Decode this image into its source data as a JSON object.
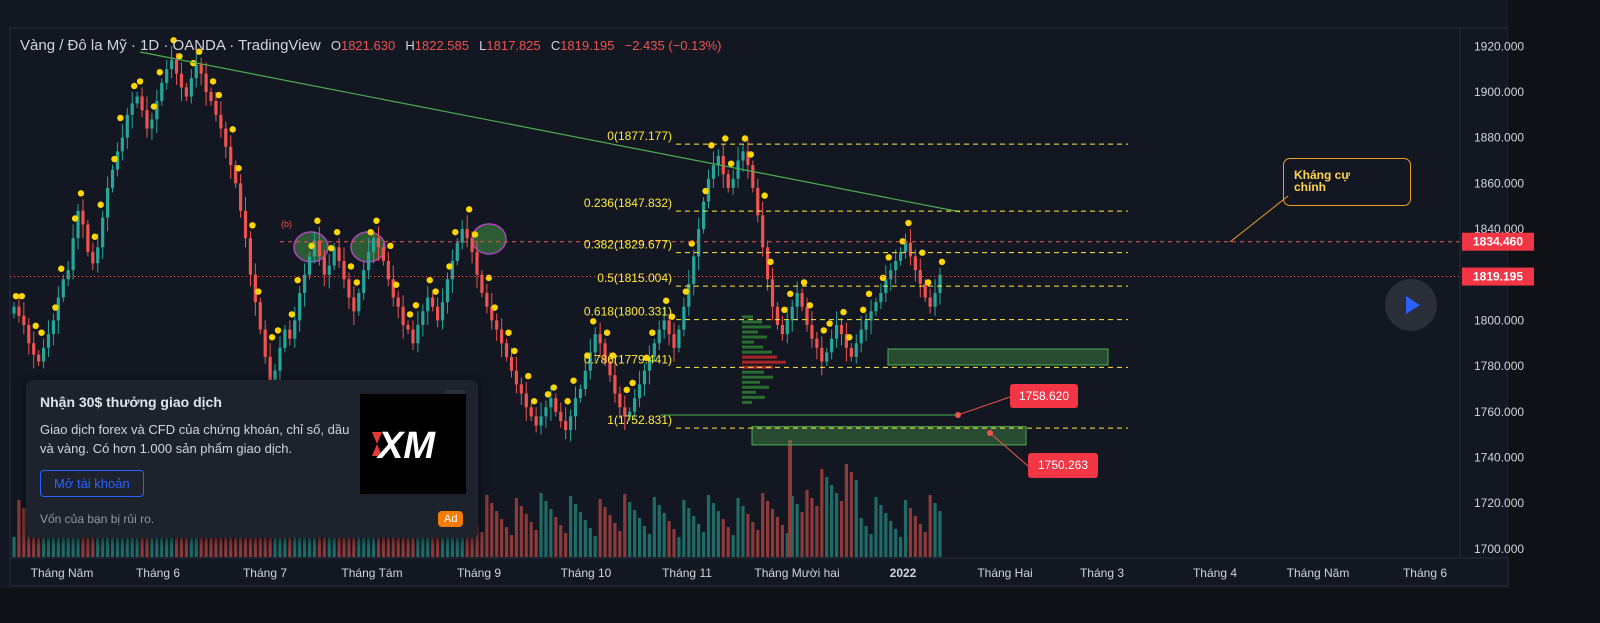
{
  "header": {
    "symbol": "Vàng / Đô la Mỹ · 1D · OANDA · TradingView",
    "o_label": "O",
    "o_value": "1821.630",
    "h_label": "H",
    "h_value": "1822.585",
    "l_label": "L",
    "l_value": "1817.825",
    "c_label": "C",
    "c_value": "1819.195",
    "change": "−2.435 (−0.13%)"
  },
  "ad": {
    "title": "Nhận 30$ thưởng giao dịch",
    "body": "Giao dịch forex và CFD của chứng khoán, chỉ số, dầu và vàng. Có hơn 1.000 sản phẩm giao dịch.",
    "button": "Mở tài khoản",
    "risk": "Vốn của bạn bị rủi ro.",
    "badge": "Ad",
    "close": "✕",
    "logo_text": "XM"
  },
  "annotations": {
    "resistance_label": "Kháng cự chính",
    "wave_label": "(b)",
    "price_tag_1": "1758.620",
    "price_tag_2": "1750.263"
  },
  "colors": {
    "background": "#131722",
    "up": "#26a69a",
    "down": "#ef5350",
    "fib": "#ffeb3b",
    "price_tag": "#f23645",
    "trendline": "#4caf50",
    "accent_blue": "#2962ff"
  },
  "icons": {
    "play": "play-icon",
    "close": "close-icon"
  },
  "chart_data": {
    "type": "candlestick",
    "symbol": "XAUUSD",
    "timeframe": "1D",
    "y_axis": {
      "ticks": [
        1700,
        1720,
        1740,
        1760,
        1780,
        1800,
        1820,
        1840,
        1860,
        1880,
        1900,
        1920
      ],
      "tick_labels": [
        "1700.000",
        "1720.000",
        "1740.000",
        "1760.000",
        "1780.000",
        "1800.000",
        "1820.000",
        "1840.000",
        "1860.000",
        "1880.000",
        "1900.000",
        "1920.000"
      ],
      "range": [
        1696,
        1928
      ]
    },
    "x_axis": {
      "labels": [
        "Tháng Năm",
        "Tháng 6",
        "Tháng 7",
        "Tháng Tám",
        "Tháng 9",
        "Tháng 10",
        "Tháng 11",
        "Tháng Mười hai",
        "2022",
        "Tháng Hai",
        "Tháng 3",
        "Tháng 4",
        "Tháng Năm",
        "Tháng 6"
      ],
      "bold": [
        "2022"
      ]
    },
    "fibonacci": [
      {
        "level": "0",
        "price": 1877.177
      },
      {
        "level": "0.236",
        "price": 1847.832
      },
      {
        "level": "0.382",
        "price": 1829.677
      },
      {
        "level": "0.5",
        "price": 1815.004
      },
      {
        "level": "0.618",
        "price": 1800.331
      },
      {
        "level": "0.786",
        "price": 1779.441
      },
      {
        "level": "1",
        "price": 1752.831
      }
    ],
    "fib_labels": [
      "0(1877.177)",
      "0.236(1847.832)",
      "0.382(1829.677)",
      "0.5(1815.004)",
      "0.618(1800.331)",
      "0.786(1779.441)",
      "1(1752.831)"
    ],
    "price_marks": [
      {
        "label": "1834.460",
        "price": 1834.46
      },
      {
        "label": "1819.195",
        "price": 1819.195
      }
    ],
    "support_zones": [
      [
        1780.5,
        1787.5
      ],
      [
        1745.5,
        1753.5
      ]
    ],
    "trendline": [
      [
        1917.5,
        1847.5
      ]
    ],
    "closes": [
      1806,
      1802,
      1798,
      1790,
      1785,
      1782,
      1788,
      1794,
      1800,
      1810,
      1818,
      1822,
      1836,
      1848,
      1842,
      1830,
      1825,
      1832,
      1845,
      1858,
      1866,
      1874,
      1880,
      1890,
      1895,
      1898,
      1892,
      1884,
      1888,
      1896,
      1904,
      1910,
      1914,
      1908,
      1902,
      1898,
      1906,
      1912,
      1908,
      1900,
      1896,
      1890,
      1884,
      1876,
      1868,
      1860,
      1848,
      1836,
      1820,
      1808,
      1796,
      1784,
      1770,
      1778,
      1788,
      1796,
      1792,
      1800,
      1812,
      1820,
      1828,
      1835,
      1828,
      1820,
      1824,
      1832,
      1826,
      1818,
      1810,
      1804,
      1812,
      1822,
      1830,
      1836,
      1832,
      1826,
      1818,
      1810,
      1806,
      1798,
      1796,
      1790,
      1798,
      1804,
      1810,
      1806,
      1800,
      1808,
      1818,
      1826,
      1834,
      1840,
      1836,
      1830,
      1820,
      1812,
      1806,
      1800,
      1796,
      1790,
      1784,
      1778,
      1772,
      1768,
      1762,
      1758,
      1754,
      1758,
      1762,
      1766,
      1760,
      1756,
      1752,
      1758,
      1766,
      1770,
      1778,
      1786,
      1794,
      1790,
      1782,
      1776,
      1768,
      1762,
      1758,
      1760,
      1766,
      1772,
      1778,
      1784,
      1790,
      1796,
      1800,
      1794,
      1788,
      1796,
      1806,
      1816,
      1828,
      1840,
      1852,
      1862,
      1868,
      1872,
      1864,
      1858,
      1862,
      1870,
      1874,
      1868,
      1858,
      1846,
      1832,
      1818,
      1806,
      1798,
      1794,
      1800,
      1806,
      1812,
      1806,
      1798,
      1792,
      1788,
      1782,
      1786,
      1792,
      1798,
      1794,
      1788,
      1784,
      1790,
      1796,
      1800,
      1804,
      1808,
      1812,
      1818,
      1822,
      1826,
      1830,
      1834,
      1828,
      1822,
      1816,
      1810,
      1806,
      1812,
      1820
    ],
    "volume_profile": true
  }
}
